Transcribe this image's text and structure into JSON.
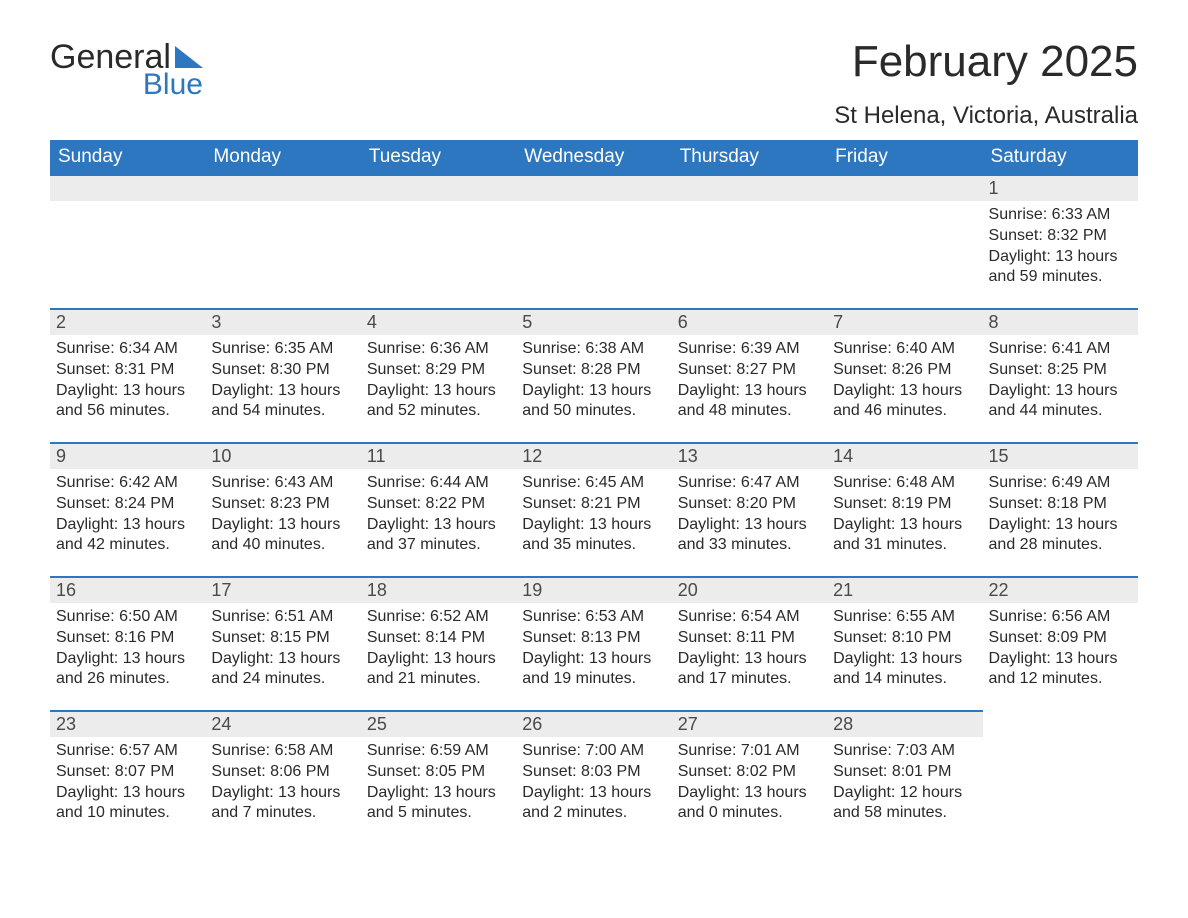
{
  "logo": {
    "text_a": "General",
    "text_b": "Blue",
    "accent_color": "#2c77bf"
  },
  "title": "February 2025",
  "subtitle": "St Helena, Victoria, Australia",
  "header_bg": "#2c77bf",
  "header_fg": "#ffffff",
  "daynum_bg": "#ececec",
  "divider_color": "#2c77bf",
  "text_color": "#2a2a2a",
  "weekdays": [
    "Sunday",
    "Monday",
    "Tuesday",
    "Wednesday",
    "Thursday",
    "Friday",
    "Saturday"
  ],
  "weeks": [
    [
      null,
      null,
      null,
      null,
      null,
      null,
      {
        "n": "1",
        "sunrise": "6:33 AM",
        "sunset": "8:32 PM",
        "daylight": "13 hours and 59 minutes."
      }
    ],
    [
      {
        "n": "2",
        "sunrise": "6:34 AM",
        "sunset": "8:31 PM",
        "daylight": "13 hours and 56 minutes."
      },
      {
        "n": "3",
        "sunrise": "6:35 AM",
        "sunset": "8:30 PM",
        "daylight": "13 hours and 54 minutes."
      },
      {
        "n": "4",
        "sunrise": "6:36 AM",
        "sunset": "8:29 PM",
        "daylight": "13 hours and 52 minutes."
      },
      {
        "n": "5",
        "sunrise": "6:38 AM",
        "sunset": "8:28 PM",
        "daylight": "13 hours and 50 minutes."
      },
      {
        "n": "6",
        "sunrise": "6:39 AM",
        "sunset": "8:27 PM",
        "daylight": "13 hours and 48 minutes."
      },
      {
        "n": "7",
        "sunrise": "6:40 AM",
        "sunset": "8:26 PM",
        "daylight": "13 hours and 46 minutes."
      },
      {
        "n": "8",
        "sunrise": "6:41 AM",
        "sunset": "8:25 PM",
        "daylight": "13 hours and 44 minutes."
      }
    ],
    [
      {
        "n": "9",
        "sunrise": "6:42 AM",
        "sunset": "8:24 PM",
        "daylight": "13 hours and 42 minutes."
      },
      {
        "n": "10",
        "sunrise": "6:43 AM",
        "sunset": "8:23 PM",
        "daylight": "13 hours and 40 minutes."
      },
      {
        "n": "11",
        "sunrise": "6:44 AM",
        "sunset": "8:22 PM",
        "daylight": "13 hours and 37 minutes."
      },
      {
        "n": "12",
        "sunrise": "6:45 AM",
        "sunset": "8:21 PM",
        "daylight": "13 hours and 35 minutes."
      },
      {
        "n": "13",
        "sunrise": "6:47 AM",
        "sunset": "8:20 PM",
        "daylight": "13 hours and 33 minutes."
      },
      {
        "n": "14",
        "sunrise": "6:48 AM",
        "sunset": "8:19 PM",
        "daylight": "13 hours and 31 minutes."
      },
      {
        "n": "15",
        "sunrise": "6:49 AM",
        "sunset": "8:18 PM",
        "daylight": "13 hours and 28 minutes."
      }
    ],
    [
      {
        "n": "16",
        "sunrise": "6:50 AM",
        "sunset": "8:16 PM",
        "daylight": "13 hours and 26 minutes."
      },
      {
        "n": "17",
        "sunrise": "6:51 AM",
        "sunset": "8:15 PM",
        "daylight": "13 hours and 24 minutes."
      },
      {
        "n": "18",
        "sunrise": "6:52 AM",
        "sunset": "8:14 PM",
        "daylight": "13 hours and 21 minutes."
      },
      {
        "n": "19",
        "sunrise": "6:53 AM",
        "sunset": "8:13 PM",
        "daylight": "13 hours and 19 minutes."
      },
      {
        "n": "20",
        "sunrise": "6:54 AM",
        "sunset": "8:11 PM",
        "daylight": "13 hours and 17 minutes."
      },
      {
        "n": "21",
        "sunrise": "6:55 AM",
        "sunset": "8:10 PM",
        "daylight": "13 hours and 14 minutes."
      },
      {
        "n": "22",
        "sunrise": "6:56 AM",
        "sunset": "8:09 PM",
        "daylight": "13 hours and 12 minutes."
      }
    ],
    [
      {
        "n": "23",
        "sunrise": "6:57 AM",
        "sunset": "8:07 PM",
        "daylight": "13 hours and 10 minutes."
      },
      {
        "n": "24",
        "sunrise": "6:58 AM",
        "sunset": "8:06 PM",
        "daylight": "13 hours and 7 minutes."
      },
      {
        "n": "25",
        "sunrise": "6:59 AM",
        "sunset": "8:05 PM",
        "daylight": "13 hours and 5 minutes."
      },
      {
        "n": "26",
        "sunrise": "7:00 AM",
        "sunset": "8:03 PM",
        "daylight": "13 hours and 2 minutes."
      },
      {
        "n": "27",
        "sunrise": "7:01 AM",
        "sunset": "8:02 PM",
        "daylight": "13 hours and 0 minutes."
      },
      {
        "n": "28",
        "sunrise": "7:03 AM",
        "sunset": "8:01 PM",
        "daylight": "12 hours and 58 minutes."
      },
      null
    ]
  ],
  "labels": {
    "sunrise": "Sunrise: ",
    "sunset": "Sunset: ",
    "daylight": "Daylight: "
  }
}
